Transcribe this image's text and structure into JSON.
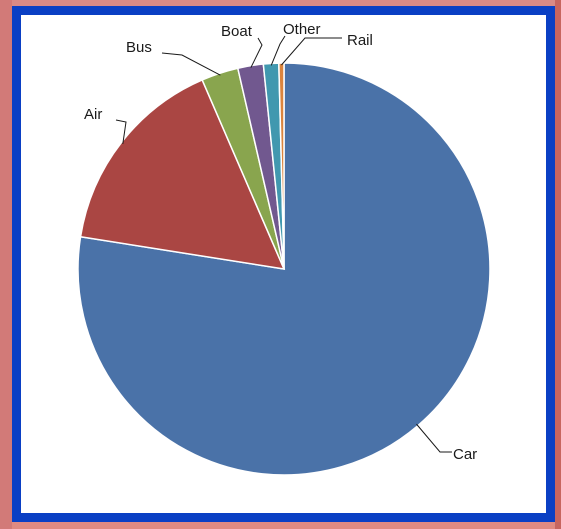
{
  "chart_data": {
    "type": "pie",
    "slices": [
      {
        "label": "Car",
        "value": 77.5,
        "color": "#4a72a8"
      },
      {
        "label": "Air",
        "value": 16.0,
        "color": "#aa4643"
      },
      {
        "label": "Bus",
        "value": 2.9,
        "color": "#89a54e"
      },
      {
        "label": "Boat",
        "value": 2.0,
        "color": "#71588f"
      },
      {
        "label": "Other",
        "value": 1.2,
        "color": "#4198af"
      },
      {
        "label": "Rail",
        "value": 0.4,
        "color": "#db843d"
      }
    ],
    "start_angle_deg": 0,
    "direction": "clockwise",
    "legend": "none"
  },
  "colors": {
    "frame_border": "#0a3fc4",
    "background": "#ffffff"
  }
}
